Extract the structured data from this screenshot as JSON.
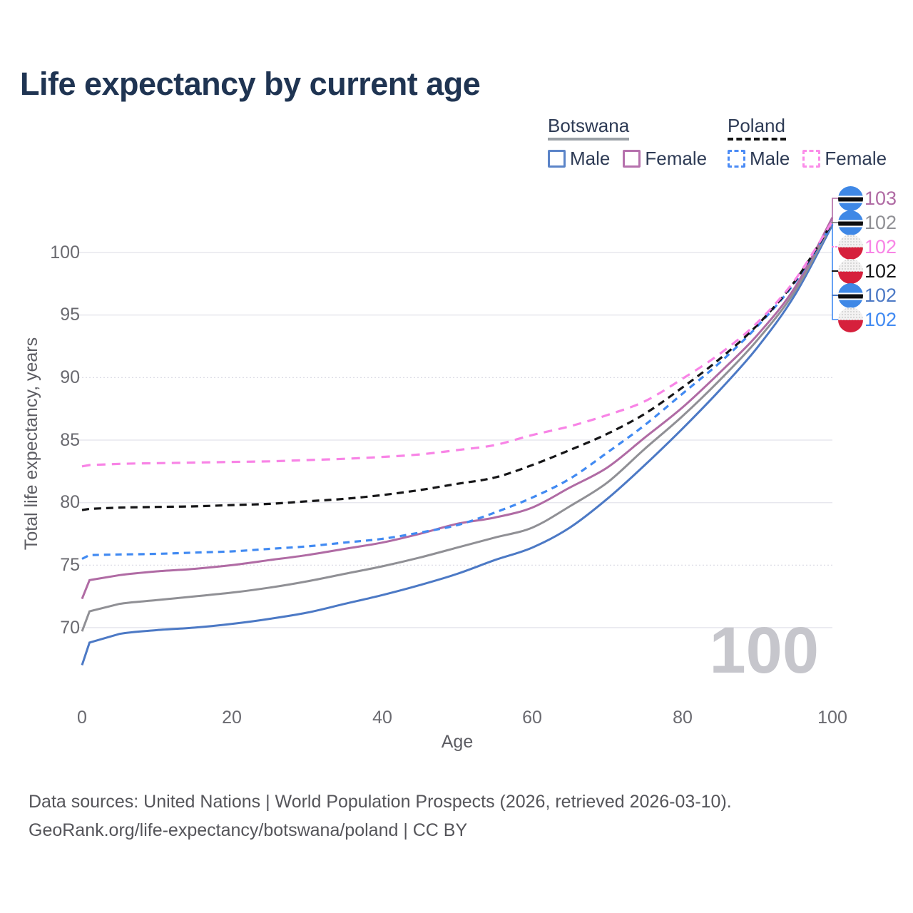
{
  "title": "Life expectancy by current age",
  "watermark": "100",
  "legend": {
    "groups": [
      {
        "name": "Botswana",
        "line_style": "solid",
        "line_color": "#9aa0a6",
        "items": [
          {
            "label": "Male",
            "color": "#5b84c8"
          },
          {
            "label": "Female",
            "color": "#b671ad"
          }
        ]
      },
      {
        "name": "Poland",
        "line_style": "dashed",
        "line_color": "#141414",
        "items": [
          {
            "label": "Male",
            "color": "#4b8bf5"
          },
          {
            "label": "Female",
            "color": "#fb8de9"
          }
        ]
      }
    ]
  },
  "footer": {
    "line1": "Data sources: United Nations | World Population Prospects (2026, retrieved 2026-03-10).",
    "line2": "GeoRank.org/life-expectancy/botswana/poland | CC BY"
  },
  "chart_data": {
    "type": "line",
    "title": "Life expectancy by current age",
    "xlabel": "Age",
    "ylabel": "Total life expectancy, years",
    "xlim": [
      0,
      100
    ],
    "ylim": [
      66,
      104
    ],
    "x_ticks": [
      0,
      20,
      40,
      60,
      80,
      100
    ],
    "y_ticks": [
      100,
      95,
      90,
      85,
      80,
      75,
      70
    ],
    "grid": "horizontal",
    "legend_position": "top-right",
    "x": [
      0,
      1,
      5,
      10,
      15,
      20,
      25,
      30,
      35,
      40,
      45,
      50,
      55,
      60,
      65,
      70,
      75,
      80,
      85,
      90,
      95,
      100
    ],
    "series": [
      {
        "name": "Botswana Female",
        "country": "Botswana",
        "sex": "Female",
        "style": "solid",
        "color": "#b06ba4",
        "end_label": 103,
        "values": [
          72.3,
          73.8,
          74.2,
          74.5,
          74.7,
          75.0,
          75.4,
          75.8,
          76.3,
          76.8,
          77.5,
          78.3,
          78.8,
          79.6,
          81.2,
          82.8,
          85.2,
          87.6,
          90.4,
          93.4,
          97.2,
          102.8
        ]
      },
      {
        "name": "Botswana",
        "country": "Botswana",
        "sex": "Both",
        "style": "solid",
        "color": "#909095",
        "end_label": 102,
        "values": [
          69.7,
          71.3,
          71.9,
          72.2,
          72.5,
          72.8,
          73.2,
          73.7,
          74.3,
          74.9,
          75.6,
          76.4,
          77.2,
          78.0,
          79.7,
          81.6,
          84.3,
          86.9,
          89.8,
          93.0,
          96.9,
          102.4
        ]
      },
      {
        "name": "Poland Female",
        "country": "Poland",
        "sex": "Female",
        "style": "dashed",
        "color": "#f884e6",
        "end_label": 102,
        "values": [
          82.9,
          83.0,
          83.1,
          83.15,
          83.2,
          83.25,
          83.3,
          83.4,
          83.5,
          83.65,
          83.85,
          84.2,
          84.6,
          85.4,
          86.1,
          87.0,
          88.1,
          89.9,
          91.9,
          94.4,
          97.8,
          102.5
        ]
      },
      {
        "name": "Poland",
        "country": "Poland",
        "sex": "Both",
        "style": "dashed",
        "color": "#161618",
        "end_label": 102,
        "values": [
          79.4,
          79.5,
          79.6,
          79.65,
          79.7,
          79.8,
          79.9,
          80.1,
          80.3,
          80.6,
          81.0,
          81.5,
          82.0,
          83.0,
          84.2,
          85.5,
          87.1,
          89.2,
          91.5,
          94.2,
          97.7,
          102.4
        ]
      },
      {
        "name": "Botswana Male",
        "country": "Botswana",
        "sex": "Male",
        "style": "solid",
        "color": "#4c79c5",
        "end_label": 102,
        "values": [
          67.0,
          68.8,
          69.5,
          69.8,
          70.0,
          70.3,
          70.7,
          71.2,
          71.9,
          72.6,
          73.4,
          74.3,
          75.4,
          76.4,
          78.0,
          80.3,
          83.0,
          85.9,
          89.0,
          92.4,
          96.6,
          102.2
        ]
      },
      {
        "name": "Poland Male",
        "country": "Poland",
        "sex": "Male",
        "style": "dashed",
        "color": "#418af2",
        "end_label": 102,
        "values": [
          75.5,
          75.8,
          75.85,
          75.9,
          76.0,
          76.1,
          76.3,
          76.5,
          76.8,
          77.1,
          77.6,
          78.2,
          79.2,
          80.4,
          81.9,
          84.0,
          86.2,
          88.7,
          91.2,
          94.1,
          97.6,
          102.3
        ]
      }
    ]
  }
}
